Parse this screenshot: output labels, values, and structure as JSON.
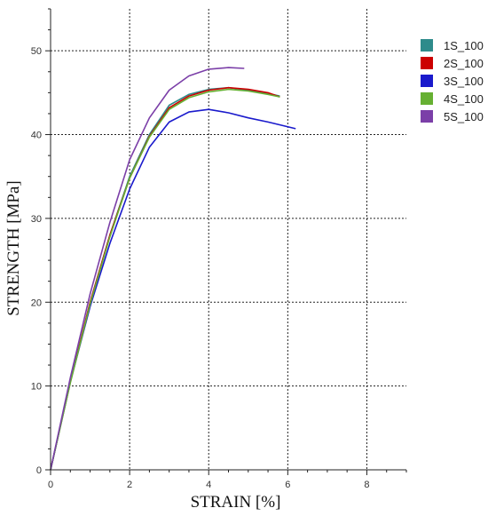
{
  "chart_data": {
    "type": "line",
    "title": "",
    "xlabel": "STRAIN [%]",
    "ylabel": "STRENGTH  [MPa]",
    "xlim": [
      0,
      9
    ],
    "ylim": [
      0,
      55
    ],
    "xticks": [
      0,
      2,
      4,
      6,
      8
    ],
    "xtick_labels": [
      "0",
      "2",
      "4",
      "6",
      "8"
    ],
    "yticks": [
      0,
      10,
      20,
      30,
      40,
      50
    ],
    "ytick_labels": [
      "0",
      "10",
      "20",
      "30",
      "40",
      "50"
    ],
    "grid": true,
    "grid_style": "dotted",
    "legend_position": "top-right",
    "series": [
      {
        "name": "1S_100",
        "color": "#2e8b8b",
        "x": [
          0,
          0.5,
          1.0,
          1.5,
          2.0,
          2.5,
          3.0,
          3.5,
          4.0,
          4.5,
          5.0,
          5.5,
          5.8
        ],
        "y": [
          0,
          10.5,
          20.0,
          28.0,
          35.0,
          40.0,
          43.5,
          44.8,
          45.4,
          45.6,
          45.3,
          44.9,
          44.6
        ]
      },
      {
        "name": "2S_100",
        "color": "#cc0000",
        "x": [
          0,
          0.5,
          1.0,
          1.5,
          2.0,
          2.5,
          3.0,
          3.5,
          4.0,
          4.5,
          5.0,
          5.5,
          5.8
        ],
        "y": [
          0,
          10.5,
          20.0,
          28.0,
          34.8,
          39.8,
          43.2,
          44.6,
          45.3,
          45.6,
          45.4,
          45.0,
          44.5
        ]
      },
      {
        "name": "3S_100",
        "color": "#1a1acc",
        "x": [
          0,
          0.5,
          1.0,
          1.5,
          2.0,
          2.5,
          3.0,
          3.5,
          4.0,
          4.5,
          5.0,
          5.5,
          6.2
        ],
        "y": [
          0,
          10.5,
          19.5,
          27.0,
          33.5,
          38.5,
          41.5,
          42.7,
          43.0,
          42.6,
          42.0,
          41.5,
          40.7
        ]
      },
      {
        "name": "4S_100",
        "color": "#66b032",
        "x": [
          0,
          0.5,
          1.0,
          1.5,
          2.0,
          2.5,
          3.0,
          3.5,
          4.0,
          4.5,
          5.0,
          5.5,
          5.8
        ],
        "y": [
          0,
          10.4,
          19.8,
          27.8,
          34.8,
          39.7,
          43.0,
          44.4,
          45.1,
          45.4,
          45.2,
          44.8,
          44.5
        ]
      },
      {
        "name": "5S_100",
        "color": "#7b3fa8",
        "x": [
          0,
          0.5,
          1.0,
          1.5,
          2.0,
          2.5,
          3.0,
          3.5,
          4.0,
          4.5,
          4.9
        ],
        "y": [
          0,
          11.0,
          21.0,
          29.5,
          37.0,
          42.0,
          45.3,
          47.0,
          47.8,
          48.0,
          47.9
        ]
      }
    ]
  }
}
